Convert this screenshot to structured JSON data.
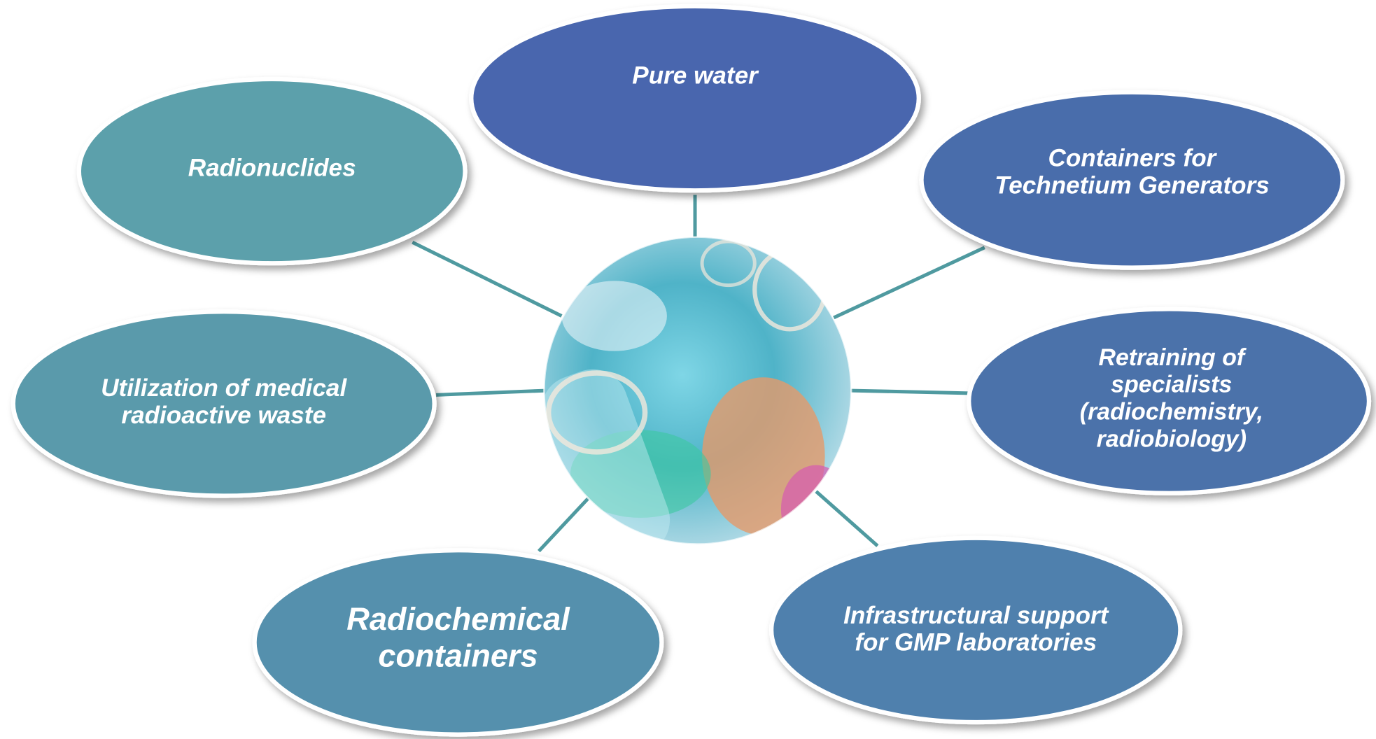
{
  "nodes": [
    {
      "lines": [
        "Pure water"
      ]
    },
    {
      "lines": [
        "Radionuclides"
      ]
    },
    {
      "lines": [
        "Containers for",
        "Technetium Generators"
      ]
    },
    {
      "lines": [
        "Utilization of medical",
        "radioactive waste"
      ]
    },
    {
      "lines": [
        "Retraining of",
        "specialists",
        "(radiochemistry,",
        "radiobiology)"
      ]
    },
    {
      "lines": [
        "Radiochemical",
        "containers"
      ]
    },
    {
      "lines": [
        "Infrastructural support",
        "for GMP laboratories"
      ]
    }
  ]
}
